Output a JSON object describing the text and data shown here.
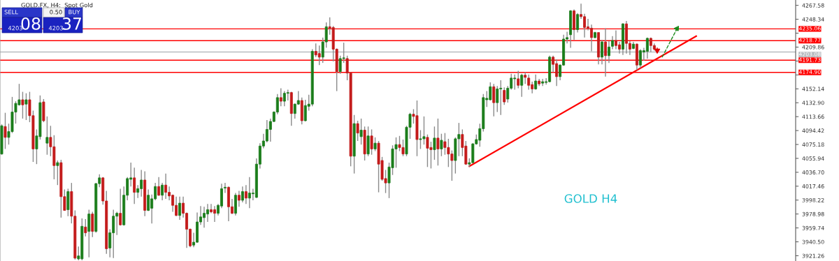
{
  "chart_data": {
    "type": "candlestick",
    "title": "GOLD.FX, H4:  Spot Gold",
    "annotations": [
      "GOLD H4",
      "SELL",
      "0.50",
      "BUY",
      "4203",
      "08",
      "4203",
      "37"
    ],
    "categories": [
      null,
      null,
      null,
      null,
      null,
      null,
      null,
      null,
      null,
      null,
      null,
      null,
      null,
      null,
      null,
      null,
      null,
      null,
      null,
      null,
      null,
      null,
      null,
      null,
      null,
      null,
      null,
      null,
      null,
      null,
      null,
      null,
      null,
      null,
      null,
      null,
      null,
      null,
      null,
      null,
      null,
      null,
      null,
      null,
      null,
      null,
      null,
      null,
      null,
      null,
      null,
      null,
      null,
      null,
      null,
      null,
      null,
      null,
      null,
      null,
      null,
      null,
      null,
      null,
      null,
      null,
      null,
      null,
      null,
      null,
      null,
      null,
      null,
      null,
      null,
      null,
      null,
      null,
      null,
      null,
      null,
      null,
      null,
      null,
      null,
      null,
      null,
      null,
      null,
      null,
      null,
      null,
      null,
      null,
      null,
      null,
      null,
      null,
      null,
      null,
      null,
      null,
      null,
      null,
      null,
      null,
      null,
      null,
      null,
      null,
      null,
      null,
      null,
      null,
      null,
      null,
      null,
      null,
      null,
      null,
      null,
      null,
      null,
      null,
      null,
      null,
      null,
      null,
      null,
      null,
      null,
      null,
      null,
      null,
      null,
      null,
      null,
      null,
      null,
      null,
      null,
      null,
      null,
      null,
      null,
      null,
      null,
      null,
      null,
      null,
      null,
      null,
      null,
      null,
      null,
      null,
      null,
      null,
      null,
      null,
      null,
      null,
      null,
      null,
      null,
      null,
      null,
      null,
      null,
      null,
      null,
      null,
      null,
      null,
      null,
      null,
      null,
      null,
      null,
      null,
      null,
      null,
      null,
      null,
      null,
      null,
      null,
      null,
      null,
      null,
      null,
      null,
      null,
      null,
      null,
      null,
      null,
      null,
      null,
      null,
      null,
      null,
      null,
      null,
      null,
      null,
      null,
      null,
      null,
      null,
      null,
      null,
      null,
      null,
      null,
      null,
      null,
      null,
      null,
      null,
      null,
      null,
      null,
      null,
      null,
      null,
      null,
      null
    ],
    "ohlc": [
      [
        4062,
        4103,
        4061,
        4101
      ],
      [
        4100,
        4119,
        4069,
        4085
      ],
      [
        4085,
        4104,
        4075,
        4093
      ],
      [
        4093,
        4141,
        4091,
        4120
      ],
      [
        4120,
        4135,
        4104,
        4132
      ],
      [
        4130,
        4159,
        4129,
        4137
      ],
      [
        4137,
        4148,
        4111,
        4130
      ],
      [
        4131,
        4146,
        4109,
        4137
      ],
      [
        4137,
        4148,
        4106,
        4115
      ],
      [
        4115,
        4122,
        4051,
        4069
      ],
      [
        4069,
        4096,
        4048,
        4087
      ],
      [
        4086,
        4143,
        4082,
        4133
      ],
      [
        4134,
        4138,
        4106,
        4108
      ],
      [
        4077,
        4114,
        4061,
        4085
      ],
      [
        4085,
        4101,
        4059,
        4072
      ],
      [
        4072,
        4088,
        4027,
        4046
      ],
      [
        4046,
        4053,
        4019,
        4050
      ],
      [
        4050,
        4054,
        3974,
        4003
      ],
      [
        4003,
        4013,
        3984,
        3984
      ],
      [
        3985,
        4014,
        3976,
        4010
      ],
      [
        4010,
        4022,
        3966,
        3976
      ],
      [
        3976,
        3984,
        3916,
        3918
      ],
      [
        3917,
        3934,
        3915,
        3921
      ],
      [
        3917,
        3973,
        3915,
        3962
      ],
      [
        3961,
        3972,
        3948,
        3953
      ],
      [
        3955,
        3985,
        3919,
        3979
      ],
      [
        3979,
        3982,
        3947,
        3955
      ],
      [
        3955,
        4022,
        3953,
        4021
      ],
      [
        4021,
        4034,
        4016,
        4029
      ],
      [
        4029,
        4030,
        3992,
        3997
      ],
      [
        3997,
        4011,
        3924,
        3931
      ],
      [
        3932,
        3958,
        3919,
        3953
      ],
      [
        3953,
        3985,
        3918,
        3976
      ],
      [
        3976,
        3982,
        3950,
        3980
      ],
      [
        3980,
        4014,
        3963,
        3964
      ],
      [
        3964,
        4017,
        3963,
        4005
      ],
      [
        4005,
        4030,
        3998,
        4028
      ],
      [
        4027,
        4050,
        4017,
        4029
      ],
      [
        4029,
        4043,
        3993,
        4009
      ],
      [
        4009,
        4019,
        4001,
        4014
      ],
      [
        4014,
        4040,
        4003,
        4026
      ],
      [
        4026,
        4038,
        3976,
        3984
      ],
      [
        3984,
        4013,
        3983,
        4005
      ],
      [
        3987,
        4006,
        3966,
        4000
      ],
      [
        4000,
        4022,
        3998,
        4017
      ],
      [
        4017,
        4030,
        4004,
        4005
      ],
      [
        4005,
        4022,
        3998,
        4019
      ],
      [
        4019,
        4035,
        4000,
        4009
      ],
      [
        4009,
        4017,
        3998,
        4004
      ],
      [
        4005,
        4006,
        3982,
        3991
      ],
      [
        3991,
        4003,
        3976,
        3977
      ],
      [
        3977,
        4003,
        3971,
        3994
      ],
      [
        3994,
        4003,
        3974,
        3980
      ],
      [
        3980,
        3981,
        3932,
        3958
      ],
      [
        3958,
        3959,
        3933,
        3935
      ],
      [
        3936,
        3953,
        3933,
        3940
      ],
      [
        3940,
        3981,
        3939,
        3968
      ],
      [
        3968,
        3990,
        3964,
        3975
      ],
      [
        3974,
        3989,
        3960,
        3980
      ],
      [
        3979,
        3993,
        3968,
        3985
      ],
      [
        3985,
        3993,
        3980,
        3982
      ],
      [
        3985,
        3990,
        3968,
        3980
      ],
      [
        3980,
        3993,
        3977,
        3991
      ],
      [
        3990,
        4021,
        3987,
        4014
      ],
      [
        4015,
        4022,
        4008,
        4016
      ],
      [
        4016,
        4017,
        3969,
        3989
      ],
      [
        3989,
        4000,
        3979,
        3980
      ],
      [
        3980,
        4008,
        3977,
        4005
      ],
      [
        4005,
        4011,
        3989,
        3998
      ],
      [
        3998,
        4017,
        3995,
        4010
      ],
      [
        4010,
        4019,
        3993,
        4001
      ],
      [
        4001,
        4030,
        3987,
        4008
      ],
      [
        4007,
        4014,
        3998,
        4008
      ],
      [
        4002,
        4056,
        4001,
        4048
      ],
      [
        4048,
        4077,
        4042,
        4073
      ],
      [
        4073,
        4090,
        4070,
        4080
      ],
      [
        4080,
        4109,
        4078,
        4096
      ],
      [
        4096,
        4111,
        4079,
        4107
      ],
      [
        4107,
        4121,
        4106,
        4120
      ],
      [
        4120,
        4145,
        4117,
        4140
      ],
      [
        4140,
        4153,
        4128,
        4135
      ],
      [
        4135,
        4149,
        4128,
        4146
      ],
      [
        4146,
        4151,
        4136,
        4147
      ],
      [
        4147,
        4148,
        4101,
        4118
      ],
      [
        4118,
        4132,
        4111,
        4131
      ],
      [
        4131,
        4149,
        4130,
        4136
      ],
      [
        4136,
        4140,
        4103,
        4108
      ],
      [
        4108,
        4137,
        4107,
        4129
      ],
      [
        4128,
        4144,
        4122,
        4131
      ],
      [
        4131,
        4207,
        4128,
        4204
      ],
      [
        4204,
        4215,
        4196,
        4199
      ],
      [
        4201,
        4212,
        4185,
        4196
      ],
      [
        4196,
        4223,
        4188,
        4217
      ],
      [
        4217,
        4244,
        4209,
        4238
      ],
      [
        4238,
        4251,
        4227,
        4236
      ],
      [
        4237,
        4239,
        4190,
        4207
      ],
      [
        4207,
        4208,
        4149,
        4176
      ],
      [
        4176,
        4198,
        4173,
        4194
      ],
      [
        4194,
        4216,
        4188,
        4195
      ],
      [
        4194,
        4198,
        4164,
        4174
      ],
      [
        4174,
        4175,
        4045,
        4059
      ],
      [
        4059,
        4116,
        4035,
        4104
      ],
      [
        4104,
        4108,
        4080,
        4091
      ],
      [
        4086,
        4111,
        4075,
        4095
      ],
      [
        4095,
        4100,
        4053,
        4062
      ],
      [
        4062,
        4100,
        4059,
        4087
      ],
      [
        4087,
        4096,
        4061,
        4069
      ],
      [
        4069,
        4085,
        4066,
        4077
      ],
      [
        4077,
        4080,
        4009,
        4048
      ],
      [
        4053,
        4058,
        4025,
        4027
      ],
      [
        4028,
        4040,
        4008,
        4022
      ],
      [
        4022,
        4050,
        4001,
        4044
      ],
      [
        4043,
        4074,
        4033,
        4069
      ],
      [
        4069,
        4085,
        4043,
        4075
      ],
      [
        4075,
        4087,
        4066,
        4071
      ],
      [
        4071,
        4082,
        4059,
        4062
      ],
      [
        4062,
        4101,
        4059,
        4099
      ],
      [
        4099,
        4119,
        4083,
        4117
      ],
      [
        4117,
        4124,
        4104,
        4114
      ],
      [
        4115,
        4136,
        4059,
        4082
      ],
      [
        4082,
        4095,
        4069,
        4083
      ],
      [
        4083,
        4114,
        4075,
        4086
      ],
      [
        4085,
        4089,
        4044,
        4070
      ],
      [
        4071,
        4079,
        4042,
        4068
      ],
      [
        4068,
        4100,
        4054,
        4084
      ],
      [
        4084,
        4111,
        4046,
        4069
      ],
      [
        4069,
        4090,
        4059,
        4081
      ],
      [
        4079,
        4091,
        4061,
        4071
      ],
      [
        4071,
        4083,
        4044,
        4062
      ],
      [
        4062,
        4067,
        4025,
        4053
      ],
      [
        4053,
        4085,
        4035,
        4083
      ],
      [
        4083,
        4105,
        4059,
        4089
      ],
      [
        4089,
        4096,
        4059,
        4071
      ],
      [
        4073,
        4080,
        4047,
        4048
      ],
      [
        4048,
        4056,
        4044,
        4050
      ],
      [
        4050,
        4077,
        4049,
        4076
      ],
      [
        4076,
        4089,
        4075,
        4082
      ],
      [
        4081,
        4104,
        4072,
        4097
      ],
      [
        4097,
        4145,
        4093,
        4140
      ],
      [
        4137,
        4149,
        4127,
        4139
      ],
      [
        4137,
        4161,
        4136,
        4155
      ],
      [
        4155,
        4159,
        4114,
        4133
      ],
      [
        4133,
        4156,
        4120,
        4152
      ],
      [
        4152,
        4164,
        4116,
        4153
      ],
      [
        4150,
        4154,
        4130,
        4134
      ],
      [
        4138,
        4156,
        4133,
        4153
      ],
      [
        4153,
        4173,
        4151,
        4167
      ],
      [
        4166,
        4172,
        4151,
        4167
      ],
      [
        4166,
        4177,
        4153,
        4157
      ],
      [
        4157,
        4173,
        4141,
        4171
      ],
      [
        4171,
        4175,
        4159,
        4168
      ],
      [
        4167,
        4172,
        4151,
        4157
      ],
      [
        4158,
        4162,
        4146,
        4152
      ],
      [
        4152,
        4172,
        4151,
        4163
      ],
      [
        4163,
        4166,
        4156,
        4159
      ],
      [
        4160,
        4166,
        4156,
        4162
      ],
      [
        4161,
        4167,
        4158,
        4162
      ],
      [
        4162,
        4198,
        4161,
        4196
      ],
      [
        4196,
        4198,
        4175,
        4186
      ],
      [
        4187,
        4193,
        4156,
        4169
      ],
      [
        4169,
        4186,
        4164,
        4185
      ],
      [
        4185,
        4227,
        4184,
        4221
      ],
      [
        4221,
        4231,
        4215,
        4223
      ],
      [
        4227,
        4261,
        4209,
        4260
      ],
      [
        4260,
        4262,
        4220,
        4234
      ],
      [
        4234,
        4257,
        4230,
        4255
      ],
      [
        4255,
        4270,
        4249,
        4252
      ],
      [
        4252,
        4256,
        4223,
        4237
      ],
      [
        4238,
        4249,
        4233,
        4236
      ],
      [
        4236,
        4241,
        4204,
        4223
      ],
      [
        4223,
        4231,
        4222,
        4230
      ],
      [
        4230,
        4230,
        4186,
        4196
      ],
      [
        4196,
        4220,
        4186,
        4217
      ],
      [
        4217,
        4236,
        4169,
        4198
      ],
      [
        4198,
        4218,
        4188,
        4210
      ],
      [
        4211,
        4225,
        4207,
        4219
      ],
      [
        4219,
        4233,
        4207,
        4212
      ],
      [
        4213,
        4217,
        4201,
        4207
      ],
      [
        4207,
        4243,
        4199,
        4242
      ],
      [
        4242,
        4246,
        4201,
        4215
      ],
      [
        4215,
        4218,
        4199,
        4207
      ],
      [
        4208,
        4217,
        4207,
        4214
      ],
      [
        4214,
        4215,
        4178,
        4185
      ],
      [
        4185,
        4207,
        4181,
        4205
      ],
      [
        4203,
        4209,
        4191,
        4205
      ],
      [
        4204,
        4223,
        4194,
        4222
      ],
      [
        4222,
        4223,
        4203,
        4212
      ],
      [
        4212,
        4215,
        4205,
        4207
      ],
      null,
      null,
      null,
      null,
      null,
      null,
      null,
      null,
      null,
      null,
      null,
      null,
      null,
      null,
      null,
      null,
      null,
      null,
      null,
      null,
      null,
      null,
      null,
      null,
      null,
      null,
      null,
      null,
      null,
      null,
      null,
      null,
      null,
      null,
      null,
      null,
      null,
      null,
      null,
      null
    ],
    "colors": [
      "#1b7d1b",
      "#c31a1a",
      "#1b7d1b",
      "#1b7d1b",
      "#1b7d1b",
      "#1b7d1b",
      "#c31a1a",
      "#1b7d1b",
      "#c31a1a",
      "#c31a1a",
      "#1b7d1b",
      "#1b7d1b",
      "#c31a1a",
      "#1b7d1b",
      "#c31a1a",
      "#c31a1a",
      "#1b7d1b",
      "#c31a1a",
      "#c31a1a",
      "#1b7d1b",
      "#c31a1a",
      "#c31a1a",
      "#1b7d1b",
      "#1b7d1b",
      "#c31a1a",
      "#1b7d1b",
      "#c31a1a",
      "#1b7d1b",
      "#1b7d1b",
      "#c31a1a",
      "#c31a1a",
      "#1b7d1b",
      "#1b7d1b",
      "#1b7d1b",
      "#c31a1a",
      "#1b7d1b",
      "#1b7d1b",
      "#1b7d1b",
      "#c31a1a",
      "#1b7d1b",
      "#1b7d1b",
      "#c31a1a",
      "#1b7d1b",
      "#1b7d1b",
      "#1b7d1b",
      "#c31a1a",
      "#1b7d1b",
      "#c31a1a",
      "#c31a1a",
      "#c31a1a",
      "#c31a1a",
      "#1b7d1b",
      "#c31a1a",
      "#c31a1a",
      "#c31a1a",
      "#1b7d1b",
      "#1b7d1b",
      "#1b7d1b",
      "#1b7d1b",
      "#1b7d1b",
      "#c31a1a",
      "#c31a1a",
      "#1b7d1b",
      "#1b7d1b",
      "#1b7d1b",
      "#c31a1a",
      "#c31a1a",
      "#1b7d1b",
      "#c31a1a",
      "#1b7d1b",
      "#c31a1a",
      "#1b7d1b",
      "#1b7d1b",
      "#1b7d1b",
      "#1b7d1b",
      "#1b7d1b",
      "#1b7d1b",
      "#1b7d1b",
      "#1b7d1b",
      "#1b7d1b",
      "#c31a1a",
      "#1b7d1b",
      "#1b7d1b",
      "#c31a1a",
      "#1b7d1b",
      "#1b7d1b",
      "#c31a1a",
      "#1b7d1b",
      "#1b7d1b",
      "#1b7d1b",
      "#c31a1a",
      "#c31a1a",
      "#1b7d1b",
      "#1b7d1b",
      "#c31a1a",
      "#c31a1a",
      "#c31a1a",
      "#1b7d1b",
      "#1b7d1b",
      "#c31a1a",
      "#c31a1a",
      "#1b7d1b",
      "#c31a1a",
      "#1b7d1b",
      "#c31a1a",
      "#1b7d1b",
      "#c31a1a",
      "#1b7d1b",
      "#c31a1a",
      "#c31a1a",
      "#c31a1a",
      "#1b7d1b",
      "#1b7d1b",
      "#1b7d1b",
      "#c31a1a",
      "#c31a1a",
      "#1b7d1b",
      "#1b7d1b",
      "#c31a1a",
      "#c31a1a",
      "#1b7d1b",
      "#1b7d1b",
      "#c31a1a",
      "#c31a1a",
      "#1b7d1b",
      "#c31a1a",
      "#1b7d1b",
      "#c31a1a",
      "#c31a1a",
      "#c31a1a",
      "#1b7d1b",
      "#1b7d1b",
      "#c31a1a",
      "#c31a1a",
      "#1b7d1b",
      "#1b7d1b",
      "#1b7d1b",
      "#1b7d1b",
      "#1b7d1b",
      "#1b7d1b",
      "#1b7d1b",
      "#c31a1a",
      "#1b7d1b",
      "#1b7d1b",
      "#c31a1a",
      "#1b7d1b",
      "#1b7d1b",
      "#1b7d1b",
      "#c31a1a",
      "#1b7d1b",
      "#c31a1a",
      "#c31a1a",
      "#c31a1a",
      "#1b7d1b",
      "#c31a1a",
      "#1b7d1b",
      "#1b7d1b",
      "#1b7d1b",
      "#c31a1a",
      "#c31a1a",
      "#1b7d1b",
      "#1b7d1b",
      "#1b7d1b",
      "#1b7d1b",
      "#c31a1a",
      "#1b7d1b",
      "#c31a1a",
      "#c31a1a",
      "#c31a1a",
      "#c31a1a",
      "#1b7d1b",
      "#c31a1a",
      "#1b7d1b",
      "#c31a1a",
      "#1b7d1b",
      "#1b7d1b",
      "#c31a1a",
      "#c31a1a",
      "#1b7d1b",
      "#c31a1a",
      "#c31a1a",
      "#1b7d1b",
      "#c31a1a",
      "#1b7d1b",
      "#1b7d1b",
      "#1b7d1b",
      "#c31a1a",
      "#c31a1a",
      null,
      null,
      null,
      null,
      null,
      null,
      null,
      null,
      null,
      null,
      null,
      null,
      null,
      null,
      null,
      null,
      null,
      null,
      null,
      null,
      null,
      null,
      null,
      null,
      null,
      null,
      null,
      null,
      null,
      null,
      null,
      null,
      null,
      null,
      null,
      null,
      null,
      null,
      null,
      null
    ],
    "series": [
      {
        "type": "line",
        "color": "#ff0000",
        "values": [
          null,
          null,
          null,
          null,
          null,
          null,
          null,
          null,
          null,
          null,
          null,
          null,
          null,
          null,
          null,
          null,
          null,
          null,
          null,
          null,
          null,
          null,
          null,
          null,
          null,
          null,
          null,
          null,
          null,
          null,
          null,
          null,
          null,
          null,
          null,
          null,
          null,
          null,
          null,
          null,
          null,
          null,
          null,
          null,
          null,
          null,
          null,
          null,
          null,
          null,
          null,
          null,
          null,
          null,
          null,
          null,
          null,
          null,
          null,
          null,
          null,
          null,
          null,
          null,
          null,
          null,
          null,
          null,
          null,
          null,
          null,
          null,
          null,
          null,
          null,
          null,
          null,
          null,
          null,
          null,
          null,
          null,
          null,
          null,
          null,
          null,
          null,
          null,
          null,
          null,
          null,
          null,
          null,
          null,
          null,
          null,
          null,
          null,
          null,
          null,
          null,
          null,
          null,
          null,
          null,
          null,
          null,
          null,
          null,
          null,
          null,
          null,
          null,
          null,
          null,
          null,
          null,
          null,
          null,
          null,
          null,
          null,
          null,
          null,
          null,
          null,
          null,
          null,
          null,
          null,
          null,
          null,
          null,
          null,
          4045,
          null,
          null,
          null,
          null,
          null,
          null,
          null,
          null,
          null,
          null,
          null,
          null,
          null,
          null,
          null,
          null,
          null,
          null,
          null,
          null,
          null,
          null,
          null,
          null,
          null,
          null,
          null,
          null,
          null,
          null,
          null,
          null,
          null,
          null,
          null,
          null,
          null,
          null,
          null,
          null,
          null,
          null,
          null,
          null,
          null,
          null,
          null,
          null,
          null,
          null,
          null,
          null,
          null,
          null,
          null,
          null,
          null,
          null,
          null,
          null,
          null,
          null,
          null,
          null,
          4225,
          null,
          null,
          null,
          null,
          null,
          null,
          null,
          null,
          null,
          null,
          null,
          null,
          null,
          null,
          null,
          null,
          null,
          null,
          null,
          null,
          null,
          null,
          null,
          null,
          null,
          null,
          null,
          null
        ]
      }
    ],
    "ref_lines": [
      {
        "axis": "y",
        "value": 4235.06,
        "label": "4235.06",
        "color": "#ff0000"
      },
      {
        "axis": "y",
        "value": 4218.77,
        "label": "4218.77",
        "color": "#ff0000"
      },
      {
        "axis": "y",
        "value": 4203.08,
        "label": "4203.08",
        "color": "#b8bcc0"
      },
      {
        "axis": "y",
        "value": 4191.73,
        "label": "4191.73",
        "color": "#ff0000"
      },
      {
        "axis": "y",
        "value": 4174.9,
        "label": "4174.90",
        "color": "#ff0000"
      }
    ],
    "ylim": [
      3914,
      4275
    ],
    "yticks": [
      {
        "value": 4267.58,
        "label": "4267.58"
      },
      {
        "value": 4248.34,
        "label": "4248.34"
      },
      {
        "value": 4229.1,
        "label": null
      },
      {
        "value": 4209.86,
        "label": "4209.86"
      },
      {
        "value": 4190.62,
        "label": null
      },
      {
        "value": 4171.38,
        "label": null
      },
      {
        "value": 4152.14,
        "label": "4152.14"
      },
      {
        "value": 4132.9,
        "label": "4132.90"
      },
      {
        "value": 4113.66,
        "label": "4113.66"
      },
      {
        "value": 4094.42,
        "label": "4094.42"
      },
      {
        "value": 4075.18,
        "label": "4075.18"
      },
      {
        "value": 4055.94,
        "label": "4055.94"
      },
      {
        "value": 4036.7,
        "label": "4036.70"
      },
      {
        "value": 4017.46,
        "label": "4017.46"
      },
      {
        "value": 3998.22,
        "label": "3998.22"
      },
      {
        "value": 3978.98,
        "label": "3978.98"
      },
      {
        "value": 3959.74,
        "label": "3959.74"
      },
      {
        "value": 3940.5,
        "label": "3940.50"
      },
      {
        "value": 3921.26,
        "label": "3921.26"
      }
    ],
    "tick_labels": "y",
    "grid": false
  }
}
